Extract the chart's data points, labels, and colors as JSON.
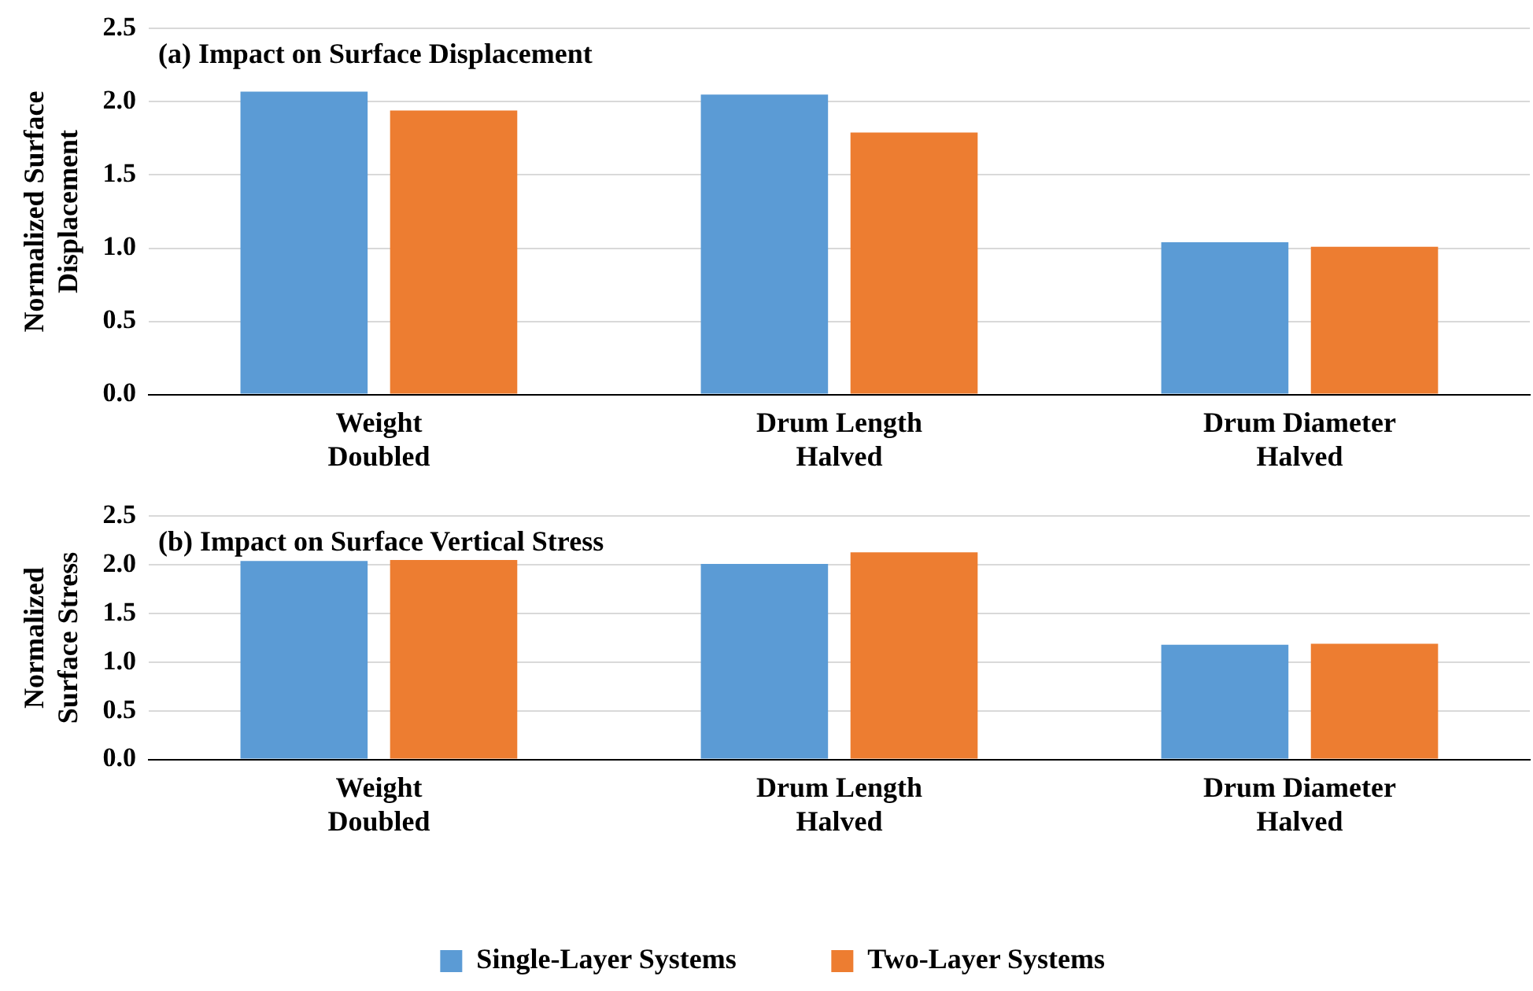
{
  "chart_data": [
    {
      "type": "bar",
      "title": "(a) Impact on Surface Displacement",
      "ylabel": "Normalized Surface Displacement",
      "categories": [
        "Weight Doubled",
        "Drum Length Halved",
        "Drum Diameter Halved"
      ],
      "series": [
        {
          "color": "#5b9bd5",
          "values": [
            2.07,
            2.05,
            1.04
          ]
        },
        {
          "color": "#ed7d31",
          "values": [
            1.94,
            1.79,
            1.01
          ]
        }
      ],
      "ylim": [
        0,
        2.5
      ],
      "yticks": [
        {
          "value": 0,
          "label": "0.0"
        },
        {
          "value": 0.5,
          "label": "0.5"
        },
        {
          "value": 1,
          "label": "1.0"
        },
        {
          "value": 1.5,
          "label": "1.5"
        },
        {
          "value": 2,
          "label": "2.0"
        },
        {
          "value": 2.5,
          "label": "2.5"
        }
      ],
      "grid": "y",
      "legend": false
    },
    {
      "type": "bar",
      "title": "(b) Impact on Surface Vertical Stress",
      "ylabel": "Normalized Surface Stress",
      "categories": [
        "Weight Doubled",
        "Drum Length Halved",
        "Drum Diameter Halved"
      ],
      "series": [
        {
          "name": "Single-Layer Systems",
          "color": "#5b9bd5",
          "values": [
            2.04,
            2.01,
            1.18
          ]
        },
        {
          "name": "Two-Layer Systems",
          "color": "#ed7d31",
          "values": [
            2.05,
            2.13,
            1.19
          ]
        }
      ],
      "ylim": [
        0,
        2.5
      ],
      "yticks": [
        {
          "value": 0,
          "label": "0.0"
        },
        {
          "value": 0.5,
          "label": "0.5"
        },
        {
          "value": 1,
          "label": "1.0"
        },
        {
          "value": 1.5,
          "label": "1.5"
        },
        {
          "value": 2,
          "label": "2.0"
        },
        {
          "value": 2.5,
          "label": "2.5"
        }
      ],
      "grid": "y",
      "legend": "bottom"
    }
  ]
}
